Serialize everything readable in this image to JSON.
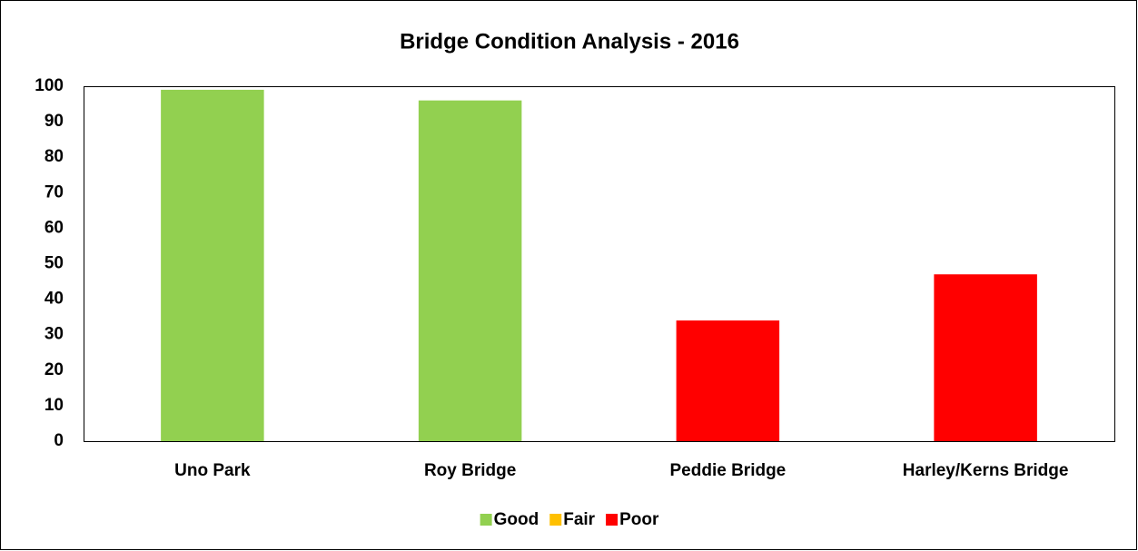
{
  "chart_data": {
    "type": "bar",
    "stacked": true,
    "title": "Bridge Condition Analysis - 2016",
    "categories": [
      "Uno Park",
      "Roy Bridge",
      "Peddie Bridge",
      "Harley/Kerns Bridge"
    ],
    "series": [
      {
        "name": "Good",
        "color": "#92d050",
        "values": [
          99,
          96,
          null,
          null
        ]
      },
      {
        "name": "Fair",
        "color": "#ffc000",
        "values": [
          null,
          null,
          null,
          null
        ]
      },
      {
        "name": "Poor",
        "color": "#ff0000",
        "values": [
          null,
          null,
          34,
          47
        ]
      }
    ],
    "ylim": [
      0,
      100
    ],
    "yticks": [
      0,
      10,
      20,
      30,
      40,
      50,
      60,
      70,
      80,
      90,
      100
    ],
    "grid": false,
    "legend": "bottom"
  }
}
